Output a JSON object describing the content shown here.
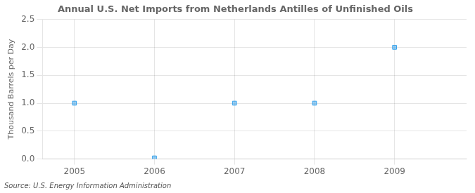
{
  "chart_data": {
    "type": "scatter",
    "title": "Annual U.S. Net Imports from Netherlands Antilles of Unfinished Oils",
    "ylabel": "Thousand Barrels per Day",
    "annotation": "Source: U.S. Energy Information Administration",
    "x": [
      2005,
      2006,
      2007,
      2008,
      2009
    ],
    "values": [
      1.0,
      0.02,
      1.0,
      1.0,
      2.0
    ],
    "xlim": [
      2004.6,
      2009.9
    ],
    "xticks": [
      2005,
      2006,
      2007,
      2008,
      2009
    ],
    "ylim": [
      0.0,
      2.5
    ],
    "yticks": [
      {
        "value": 0.0,
        "label": "0.0"
      },
      0.5,
      {
        "value": 1.0,
        "label": "1.0"
      },
      1.5,
      {
        "value": 2.0,
        "label": "2.0"
      },
      2.5
    ],
    "marker": "square",
    "grid": true
  }
}
